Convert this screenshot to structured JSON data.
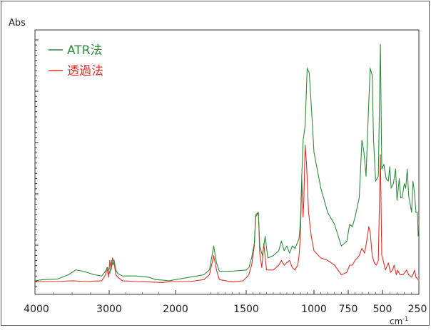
{
  "chart_data": {
    "type": "line",
    "ylabel": "Abs",
    "xlabel": "cm-1",
    "xlabel_base": "cm",
    "xlabel_sup": "-1",
    "x_reversed": true,
    "xlim": [
      4000,
      250
    ],
    "ylim": [
      0,
      1
    ],
    "x_ticks": [
      {
        "value": 4000,
        "label": "4000"
      },
      {
        "value": 3000,
        "label": "3000"
      },
      {
        "value": 2000,
        "label": "2000"
      },
      {
        "value": 1500,
        "label": "1500"
      },
      {
        "value": 1000,
        "label": "1000"
      },
      {
        "value": 750,
        "label": "750"
      },
      {
        "value": 500,
        "label": "500"
      },
      {
        "value": 250,
        "label": "250"
      }
    ],
    "legend_position": "top-left",
    "series": [
      {
        "name": "ATR法",
        "color": "#2e8b3e",
        "points": [
          [
            4000,
            0.015
          ],
          [
            3900,
            0.02
          ],
          [
            3700,
            0.022
          ],
          [
            3550,
            0.04
          ],
          [
            3450,
            0.06
          ],
          [
            3350,
            0.055
          ],
          [
            3200,
            0.04
          ],
          [
            3100,
            0.035
          ],
          [
            3050,
            0.055
          ],
          [
            3020,
            0.07
          ],
          [
            2990,
            0.045
          ],
          [
            2960,
            0.1
          ],
          [
            2945,
            0.08
          ],
          [
            2925,
            0.1
          ],
          [
            2900,
            0.06
          ],
          [
            2870,
            0.045
          ],
          [
            2800,
            0.035
          ],
          [
            2600,
            0.035
          ],
          [
            2400,
            0.03
          ],
          [
            2300,
            0.02
          ],
          [
            2200,
            0.018
          ],
          [
            2100,
            0.015
          ],
          [
            2000,
            0.02
          ],
          [
            1900,
            0.03
          ],
          [
            1800,
            0.04
          ],
          [
            1760,
            0.06
          ],
          [
            1730,
            0.16
          ],
          [
            1710,
            0.09
          ],
          [
            1690,
            0.055
          ],
          [
            1600,
            0.055
          ],
          [
            1500,
            0.06
          ],
          [
            1480,
            0.07
          ],
          [
            1460,
            0.11
          ],
          [
            1440,
            0.17
          ],
          [
            1430,
            0.29
          ],
          [
            1410,
            0.3
          ],
          [
            1400,
            0.16
          ],
          [
            1380,
            0.12
          ],
          [
            1360,
            0.2
          ],
          [
            1340,
            0.11
          ],
          [
            1300,
            0.12
          ],
          [
            1260,
            0.14
          ],
          [
            1240,
            0.18
          ],
          [
            1220,
            0.14
          ],
          [
            1200,
            0.16
          ],
          [
            1180,
            0.13
          ],
          [
            1160,
            0.16
          ],
          [
            1140,
            0.15
          ],
          [
            1110,
            0.19
          ],
          [
            1100,
            0.26
          ],
          [
            1090,
            0.45
          ],
          [
            1080,
            0.6
          ],
          [
            1065,
            0.66
          ],
          [
            1050,
            0.9
          ],
          [
            1035,
            0.88
          ],
          [
            1015,
            0.7
          ],
          [
            1000,
            0.55
          ],
          [
            950,
            0.4
          ],
          [
            900,
            0.3
          ],
          [
            850,
            0.25
          ],
          [
            800,
            0.16
          ],
          [
            760,
            0.18
          ],
          [
            740,
            0.25
          ],
          [
            720,
            0.24
          ],
          [
            700,
            0.28
          ],
          [
            670,
            0.36
          ],
          [
            650,
            0.6
          ],
          [
            635,
            0.55
          ],
          [
            620,
            0.45
          ],
          [
            605,
            0.68
          ],
          [
            590,
            0.9
          ],
          [
            575,
            0.87
          ],
          [
            565,
            0.6
          ],
          [
            550,
            0.43
          ],
          [
            530,
            0.45
          ],
          [
            515,
            1.0
          ],
          [
            505,
            0.48
          ],
          [
            490,
            0.5
          ],
          [
            475,
            0.44
          ],
          [
            460,
            0.43
          ],
          [
            450,
            0.49
          ],
          [
            440,
            0.4
          ],
          [
            425,
            0.42
          ],
          [
            410,
            0.48
          ],
          [
            400,
            0.35
          ],
          [
            385,
            0.44
          ],
          [
            375,
            0.36
          ],
          [
            365,
            0.36
          ],
          [
            350,
            0.42
          ],
          [
            340,
            0.4
          ],
          [
            330,
            0.48
          ],
          [
            320,
            0.37
          ],
          [
            300,
            0.3
          ],
          [
            290,
            0.43
          ],
          [
            280,
            0.38
          ],
          [
            270,
            0.3
          ],
          [
            260,
            0.3
          ],
          [
            255,
            0.2
          ]
        ]
      },
      {
        "name": "透過法",
        "color": "#e0302a",
        "points": [
          [
            4000,
            0.01
          ],
          [
            3900,
            0.012
          ],
          [
            3700,
            0.012
          ],
          [
            3500,
            0.015
          ],
          [
            3300,
            0.012
          ],
          [
            3100,
            0.015
          ],
          [
            3050,
            0.04
          ],
          [
            3030,
            0.07
          ],
          [
            3010,
            0.03
          ],
          [
            2990,
            0.1
          ],
          [
            2970,
            0.06
          ],
          [
            2950,
            0.11
          ],
          [
            2920,
            0.08
          ],
          [
            2900,
            0.04
          ],
          [
            2870,
            0.03
          ],
          [
            2800,
            0.015
          ],
          [
            2600,
            0.012
          ],
          [
            2400,
            0.01
          ],
          [
            2200,
            0.008
          ],
          [
            2050,
            0.012
          ],
          [
            1900,
            0.012
          ],
          [
            1800,
            0.02
          ],
          [
            1760,
            0.04
          ],
          [
            1730,
            0.12
          ],
          [
            1710,
            0.06
          ],
          [
            1690,
            0.02
          ],
          [
            1600,
            0.01
          ],
          [
            1520,
            0.015
          ],
          [
            1480,
            0.04
          ],
          [
            1460,
            0.08
          ],
          [
            1440,
            0.16
          ],
          [
            1430,
            0.28
          ],
          [
            1410,
            0.3
          ],
          [
            1400,
            0.13
          ],
          [
            1385,
            0.07
          ],
          [
            1370,
            0.17
          ],
          [
            1350,
            0.06
          ],
          [
            1300,
            0.06
          ],
          [
            1260,
            0.08
          ],
          [
            1240,
            0.1
          ],
          [
            1220,
            0.08
          ],
          [
            1180,
            0.1
          ],
          [
            1160,
            0.07
          ],
          [
            1140,
            0.06
          ],
          [
            1120,
            0.08
          ],
          [
            1110,
            0.12
          ],
          [
            1100,
            0.2
          ],
          [
            1090,
            0.44
          ],
          [
            1080,
            0.28
          ],
          [
            1075,
            0.35
          ],
          [
            1065,
            0.58
          ],
          [
            1055,
            0.5
          ],
          [
            1040,
            0.3
          ],
          [
            1020,
            0.2
          ],
          [
            1000,
            0.14
          ],
          [
            950,
            0.11
          ],
          [
            900,
            0.1
          ],
          [
            850,
            0.08
          ],
          [
            800,
            0.04
          ],
          [
            760,
            0.05
          ],
          [
            740,
            0.08
          ],
          [
            720,
            0.08
          ],
          [
            700,
            0.1
          ],
          [
            670,
            0.12
          ],
          [
            650,
            0.15
          ],
          [
            630,
            0.13
          ],
          [
            615,
            0.18
          ],
          [
            600,
            0.24
          ],
          [
            590,
            0.22
          ],
          [
            575,
            0.12
          ],
          [
            560,
            0.09
          ],
          [
            545,
            0.08
          ],
          [
            530,
            0.1
          ],
          [
            515,
            0.54
          ],
          [
            505,
            0.12
          ],
          [
            495,
            0.1
          ],
          [
            480,
            0.06
          ],
          [
            460,
            0.09
          ],
          [
            445,
            0.05
          ],
          [
            430,
            0.06
          ],
          [
            420,
            0.08
          ],
          [
            405,
            0.04
          ],
          [
            395,
            0.06
          ],
          [
            380,
            0.04
          ],
          [
            360,
            0.04
          ],
          [
            345,
            0.05
          ],
          [
            335,
            0.06
          ],
          [
            320,
            0.04
          ],
          [
            300,
            0.03
          ],
          [
            290,
            0.04
          ],
          [
            280,
            0.06
          ],
          [
            270,
            0.03
          ],
          [
            255,
            0.02
          ]
        ]
      }
    ]
  }
}
